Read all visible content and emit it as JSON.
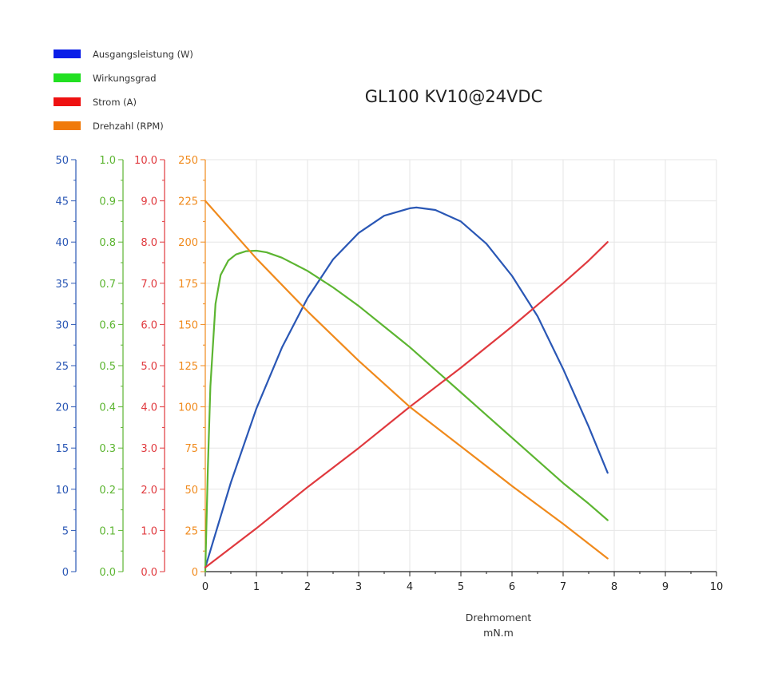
{
  "chart_data": {
    "type": "line",
    "title": "GL100 KV10@24VDC",
    "xlabel": "Drehmoment",
    "xunit": "mN.m",
    "xlim": [
      0,
      10
    ],
    "x_ticks": [
      "0",
      "1",
      "2",
      "3",
      "4",
      "5",
      "6",
      "7",
      "8",
      "9",
      "10"
    ],
    "grid": true,
    "legend_position": "top-left",
    "axes": [
      {
        "id": "power",
        "color": "#2a57b5",
        "ylim": [
          0,
          50
        ],
        "ticks": [
          "0",
          "5",
          "10",
          "15",
          "20",
          "25",
          "30",
          "35",
          "40",
          "45",
          "50"
        ]
      },
      {
        "id": "efficiency",
        "color": "#5cb531",
        "ylim": [
          0,
          1.0
        ],
        "ticks": [
          "0.0",
          "0.1",
          "0.2",
          "0.3",
          "0.4",
          "0.5",
          "0.6",
          "0.7",
          "0.8",
          "0.9",
          "1.0"
        ]
      },
      {
        "id": "current",
        "color": "#e0393e",
        "ylim": [
          0,
          10.0
        ],
        "ticks": [
          "0.0",
          "1.0",
          "2.0",
          "3.0",
          "4.0",
          "5.0",
          "6.0",
          "7.0",
          "8.0",
          "9.0",
          "10.0"
        ]
      },
      {
        "id": "speed",
        "color": "#f08a1c",
        "ylim": [
          0,
          250
        ],
        "ticks": [
          "0",
          "25",
          "50",
          "75",
          "100",
          "125",
          "150",
          "175",
          "200",
          "225",
          "250"
        ]
      }
    ],
    "legend": [
      {
        "label": "Ausgangsleistung (W)",
        "color": "#0a1ee8"
      },
      {
        "label": "Wirkungsgrad",
        "color": "#22e022"
      },
      {
        "label": "Strom (A)",
        "color": "#ee1111"
      },
      {
        "label": "Drehzahl (RPM)",
        "color": "#f07a0a"
      }
    ],
    "series": [
      {
        "axis": "power",
        "color": "#2a57b5",
        "x": [
          0,
          0.5,
          1,
          1.5,
          2,
          2.5,
          3,
          3.5,
          4,
          4.13,
          4.5,
          5,
          5.5,
          6,
          6.5,
          7,
          7.5,
          7.87
        ],
        "y": [
          0.5,
          10.8,
          19.8,
          27.2,
          33.2,
          37.9,
          41.1,
          43.2,
          44.1,
          44.2,
          43.9,
          42.5,
          39.8,
          35.9,
          31.0,
          24.6,
          17.6,
          12.0
        ]
      },
      {
        "axis": "efficiency",
        "color": "#5cb531",
        "x": [
          0,
          0.05,
          0.1,
          0.2,
          0.3,
          0.45,
          0.6,
          0.8,
          1.0,
          1.2,
          1.5,
          2,
          2.5,
          3,
          3.5,
          4,
          4.5,
          5,
          5.5,
          6,
          6.5,
          7,
          7.5,
          7.87
        ],
        "y": [
          0.0,
          0.25,
          0.45,
          0.65,
          0.72,
          0.755,
          0.77,
          0.778,
          0.779,
          0.775,
          0.762,
          0.73,
          0.69,
          0.645,
          0.595,
          0.545,
          0.49,
          0.435,
          0.38,
          0.325,
          0.27,
          0.215,
          0.165,
          0.125
        ]
      },
      {
        "axis": "current",
        "color": "#e0393e",
        "x": [
          0,
          1,
          2,
          3,
          4,
          5,
          6,
          7,
          7.5,
          7.87
        ],
        "y": [
          0.1,
          1.05,
          2.05,
          3.0,
          4.0,
          4.95,
          5.95,
          7.0,
          7.55,
          8.0
        ]
      },
      {
        "axis": "speed",
        "color": "#f08a1c",
        "x": [
          0,
          1,
          2,
          3,
          4,
          5,
          6,
          7,
          7.87
        ],
        "y": [
          225,
          190,
          158,
          128,
          100,
          76,
          52,
          29,
          8
        ]
      }
    ]
  }
}
